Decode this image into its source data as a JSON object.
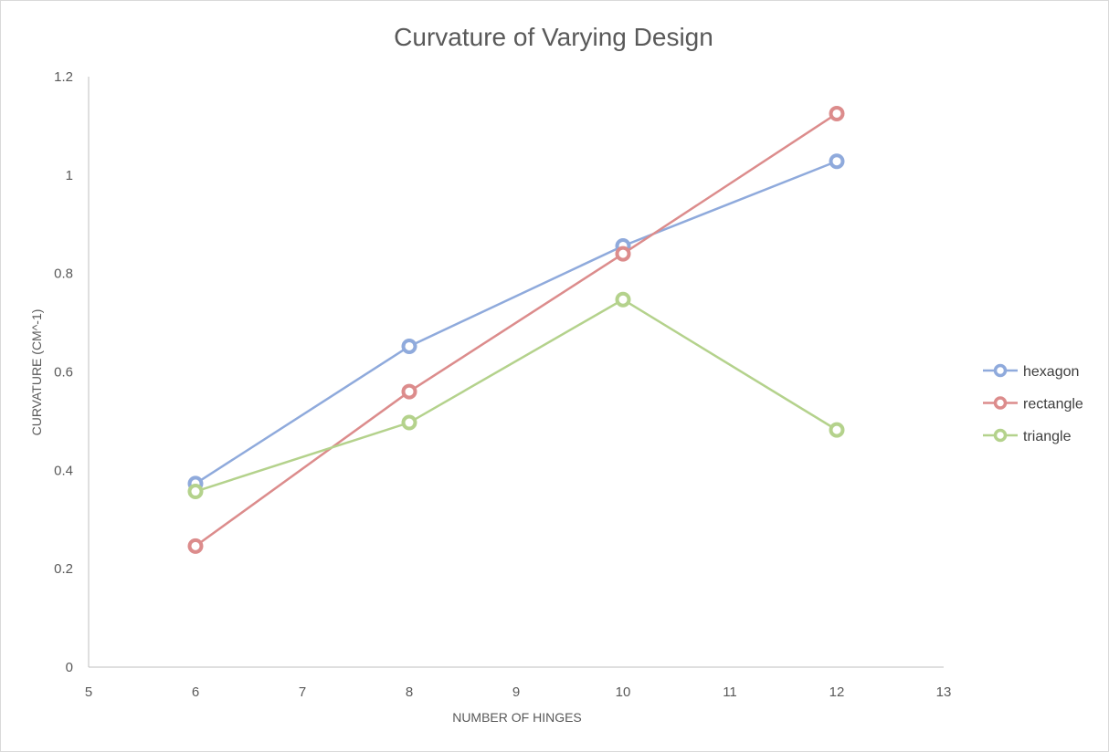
{
  "chart_data": {
    "type": "scatter",
    "title": "Curvature of Varying Design",
    "xlabel": "NUMBER OF HINGES",
    "ylabel": "CURVATURE (CM^-1)",
    "xlim": [
      5,
      13
    ],
    "ylim": [
      0,
      1.2
    ],
    "xticks": [
      "5",
      "6",
      "7",
      "8",
      "9",
      "10",
      "11",
      "12",
      "13"
    ],
    "yticks": [
      "0",
      "0.2",
      "0.4",
      "0.6",
      "0.8",
      "1",
      "1.2"
    ],
    "grid": false,
    "legend_position": "right",
    "series": [
      {
        "name": "hexagon",
        "color": "#8faadc",
        "x": [
          6,
          8,
          10,
          12
        ],
        "y": [
          0.373,
          0.652,
          0.856,
          1.028
        ]
      },
      {
        "name": "rectangle",
        "color": "#dc8c8c",
        "x": [
          6,
          8,
          10,
          12
        ],
        "y": [
          0.246,
          0.56,
          0.84,
          1.125
        ]
      },
      {
        "name": "triangle",
        "color": "#b4d28c",
        "x": [
          6,
          8,
          10,
          12
        ],
        "y": [
          0.357,
          0.497,
          0.747,
          0.482
        ]
      }
    ]
  }
}
